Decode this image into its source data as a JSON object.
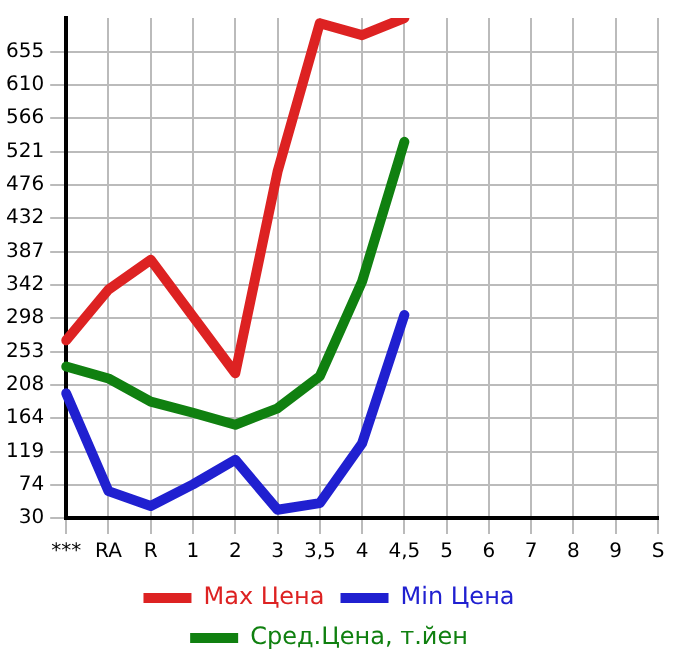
{
  "chart_data": {
    "type": "line",
    "categories": [
      "***",
      "RA",
      "R",
      "1",
      "2",
      "3",
      "3,5",
      "4",
      "4,5",
      "5",
      "6",
      "7",
      "8",
      "9",
      "S"
    ],
    "series": [
      {
        "name": "Max Цена",
        "color": "#dd2222",
        "values": [
          268,
          336,
          376,
          300,
          224,
          494,
          693,
          677,
          700,
          null,
          null,
          null,
          null,
          null,
          null
        ]
      },
      {
        "name": "Min Цена",
        "color": "#2020d0",
        "values": [
          197,
          66,
          46,
          75,
          108,
          41,
          50,
          130,
          302,
          null,
          null,
          null,
          null,
          null,
          null
        ]
      },
      {
        "name": "Сред.Цена, т.йен",
        "color": "#108010",
        "values": [
          233,
          217,
          186,
          171,
          155,
          177,
          220,
          347,
          534,
          null,
          null,
          null,
          null,
          null,
          null
        ]
      }
    ],
    "ylim": [
      30,
      700
    ],
    "yticks": [
      30,
      74,
      119,
      164,
      208,
      253,
      298,
      342,
      387,
      432,
      476,
      521,
      566,
      610,
      655
    ],
    "grid": true,
    "legend": "bottom",
    "marker": "none",
    "line_style": "solid"
  }
}
